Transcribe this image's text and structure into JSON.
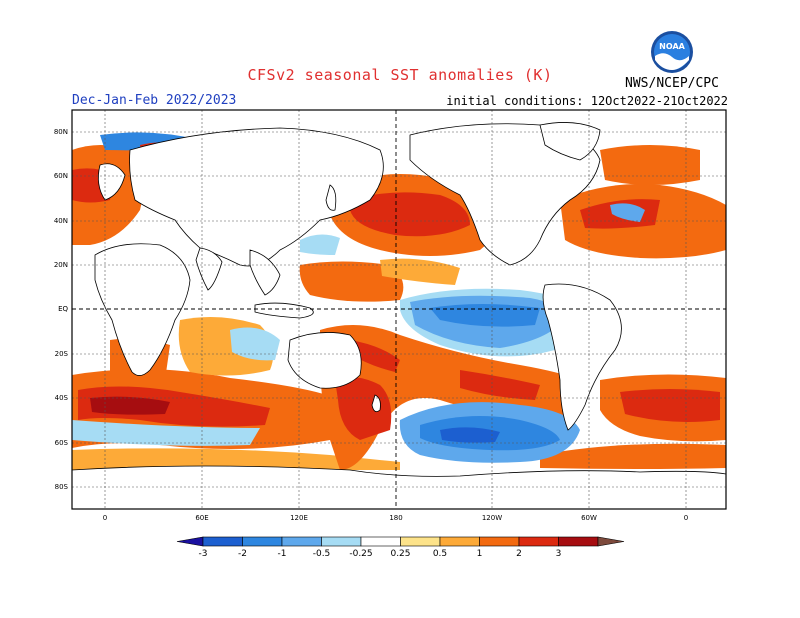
{
  "header": {
    "title": "CFSv2 seasonal SST anomalies (K)",
    "period": "Dec-Jan-Feb 2022/2023",
    "initial_conditions": "initial conditions: 12Oct2022-21Oct2022",
    "agency": "NWS/NCEP/CPC",
    "logo_text": "NOAA"
  },
  "map": {
    "lat_labels": [
      "80N",
      "60N",
      "40N",
      "20N",
      "EQ",
      "20S",
      "40S",
      "60S",
      "80S"
    ],
    "lon_labels": [
      "0",
      "60E",
      "120E",
      "180",
      "120W",
      "60W",
      "0"
    ]
  },
  "colorbar": {
    "tick_labels": [
      "-3",
      "-2",
      "-1",
      "-0.5",
      "-0.25",
      "0.25",
      "0.5",
      "1",
      "2",
      "3"
    ],
    "colors": [
      "#1a10a0",
      "#1c5fd0",
      "#2e86e0",
      "#5ea8ec",
      "#a6dcf4",
      "#ffffff",
      "#fde38a",
      "#fdaa38",
      "#f36a10",
      "#dc2a10",
      "#a60d10",
      "#7d4a3c"
    ]
  },
  "colors": {
    "warm": "#f36a10",
    "strong_warm": "#dc2a10",
    "very_warm": "#a60d10",
    "weak_warm": "#fdaa38",
    "slight_warm": "#fde38a",
    "cool": "#5ea8ec",
    "strong_cool": "#2e86e0",
    "very_cool": "#1c5fd0",
    "slight_cool": "#a6dcf4",
    "land": "#ffffff",
    "title": "#e03030",
    "subtitle": "#2040c0"
  }
}
